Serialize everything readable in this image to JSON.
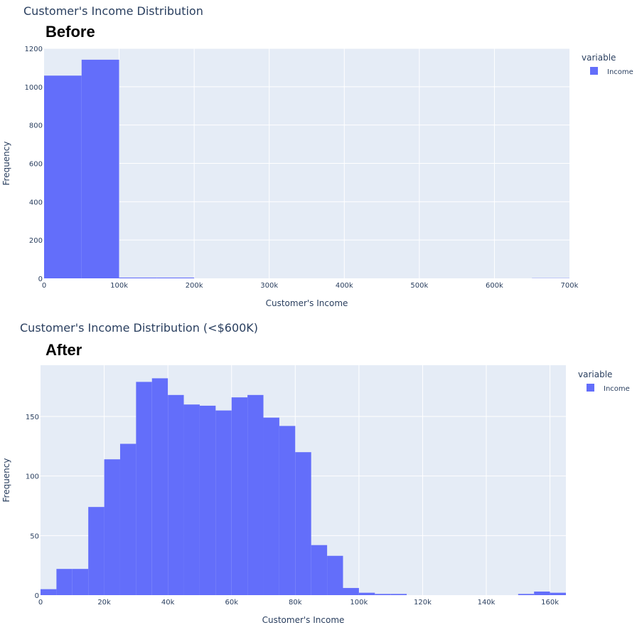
{
  "colors": {
    "bar": "#636efa",
    "plot_bg": "#e5ecf6",
    "grid": "#ffffff",
    "text": "#2a3f5f"
  },
  "chart_data": [
    {
      "type": "bar",
      "title": "Customer's Income Distribution",
      "annotation": "Before",
      "xlabel": "Customer's Income",
      "ylabel": "Frequency",
      "xlim": [
        0,
        700000
      ],
      "ylim": [
        0,
        1200
      ],
      "x_ticks": [
        0,
        100000,
        200000,
        300000,
        400000,
        500000,
        600000,
        700000
      ],
      "x_tick_labels": [
        "0",
        "100k",
        "200k",
        "300k",
        "400k",
        "500k",
        "600k",
        "700k"
      ],
      "y_ticks": [
        0,
        200,
        400,
        600,
        800,
        1000,
        1200
      ],
      "y_tick_labels": [
        "0",
        "200",
        "400",
        "600",
        "800",
        "1000",
        "1200"
      ],
      "legend": {
        "title": "variable",
        "items": [
          "Income"
        ],
        "placement": "top-right"
      },
      "bins": [
        {
          "x0": 0,
          "x1": 50000,
          "y": 1058
        },
        {
          "x0": 50000,
          "x1": 100000,
          "y": 1141
        },
        {
          "x0": 100000,
          "x1": 150000,
          "y": 4
        },
        {
          "x0": 150000,
          "x1": 200000,
          "y": 4
        },
        {
          "x0": 650000,
          "x1": 700000,
          "y": 1
        }
      ]
    },
    {
      "type": "bar",
      "title": "Customer's Income Distribution (<$600K)",
      "annotation": "After",
      "xlabel": "Customer's Income",
      "ylabel": "Frequency",
      "xlim": [
        0,
        165000
      ],
      "ylim": [
        0,
        193
      ],
      "x_ticks": [
        0,
        20000,
        40000,
        60000,
        80000,
        100000,
        120000,
        140000,
        160000
      ],
      "x_tick_labels": [
        "0",
        "20k",
        "40k",
        "60k",
        "80k",
        "100k",
        "120k",
        "140k",
        "160k"
      ],
      "y_ticks": [
        0,
        50,
        100,
        150
      ],
      "y_tick_labels": [
        "0",
        "50",
        "100",
        "150"
      ],
      "legend": {
        "title": "variable",
        "items": [
          "Income"
        ],
        "placement": "top-right"
      },
      "bins": [
        {
          "x0": 0,
          "x1": 5000,
          "y": 5
        },
        {
          "x0": 5000,
          "x1": 10000,
          "y": 22
        },
        {
          "x0": 10000,
          "x1": 15000,
          "y": 22
        },
        {
          "x0": 15000,
          "x1": 20000,
          "y": 74
        },
        {
          "x0": 20000,
          "x1": 25000,
          "y": 114
        },
        {
          "x0": 25000,
          "x1": 30000,
          "y": 127
        },
        {
          "x0": 30000,
          "x1": 35000,
          "y": 179
        },
        {
          "x0": 35000,
          "x1": 40000,
          "y": 182
        },
        {
          "x0": 40000,
          "x1": 45000,
          "y": 168
        },
        {
          "x0": 45000,
          "x1": 50000,
          "y": 160
        },
        {
          "x0": 50000,
          "x1": 55000,
          "y": 159
        },
        {
          "x0": 55000,
          "x1": 60000,
          "y": 155
        },
        {
          "x0": 60000,
          "x1": 65000,
          "y": 166
        },
        {
          "x0": 65000,
          "x1": 70000,
          "y": 168
        },
        {
          "x0": 70000,
          "x1": 75000,
          "y": 149
        },
        {
          "x0": 75000,
          "x1": 80000,
          "y": 142
        },
        {
          "x0": 80000,
          "x1": 85000,
          "y": 120
        },
        {
          "x0": 85000,
          "x1": 90000,
          "y": 42
        },
        {
          "x0": 90000,
          "x1": 95000,
          "y": 33
        },
        {
          "x0": 95000,
          "x1": 100000,
          "y": 6
        },
        {
          "x0": 100000,
          "x1": 105000,
          "y": 2
        },
        {
          "x0": 105000,
          "x1": 110000,
          "y": 1
        },
        {
          "x0": 110000,
          "x1": 115000,
          "y": 1
        },
        {
          "x0": 150000,
          "x1": 155000,
          "y": 1
        },
        {
          "x0": 155000,
          "x1": 160000,
          "y": 3
        },
        {
          "x0": 160000,
          "x1": 165000,
          "y": 2
        }
      ]
    }
  ]
}
